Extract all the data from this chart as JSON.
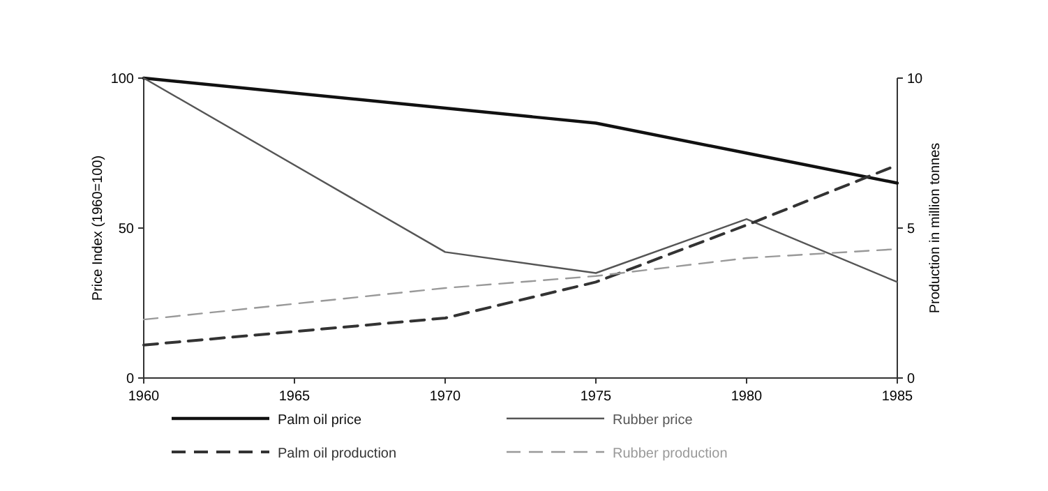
{
  "chart_data": {
    "type": "line",
    "xlabel": null,
    "ylabel": "Price Index (1960=100)",
    "y2label": "Production in million tonnes",
    "x": [
      1960,
      1970,
      1975,
      1980,
      1985
    ],
    "xlim": [
      1960,
      1985
    ],
    "xticks": [
      1960,
      1965,
      1970,
      1975,
      1980,
      1985
    ],
    "ylim": [
      0,
      100
    ],
    "yticks": [
      0,
      50,
      100
    ],
    "y2lim": [
      0,
      10
    ],
    "y2ticks": [
      0,
      5,
      10
    ],
    "grid": false,
    "legend": "bottom",
    "marker": "none",
    "series": [
      {
        "name": "Palm oil price",
        "color": "#111111",
        "line_style": "solid",
        "values": [
          100,
          90,
          85,
          75,
          65
        ]
      },
      {
        "name": "Rubber price",
        "color": "#555555",
        "line_style": "solid",
        "values": [
          100,
          42,
          35,
          53,
          32
        ]
      },
      {
        "name": "Palm oil production",
        "color": "#333333",
        "line_style": "dashed",
        "axis": "y2",
        "values": [
          1.1,
          2.0,
          3.2,
          5.1,
          7.1
        ]
      },
      {
        "name": "Rubber production",
        "color": "#999999",
        "line_style": "dashed",
        "axis": "y2",
        "values": [
          1.95,
          3.0,
          3.4,
          4.0,
          4.3
        ]
      }
    ]
  }
}
